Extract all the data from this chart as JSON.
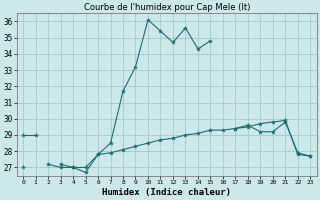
{
  "title": "Courbe de l'humidex pour Cap Mele (It)",
  "xlabel": "Humidex (Indice chaleur)",
  "bg_color": "#cce8ea",
  "grid_color": "#a0c8cc",
  "line_color": "#1a6e6a",
  "x_values": [
    0,
    1,
    2,
    3,
    4,
    5,
    6,
    7,
    8,
    9,
    10,
    11,
    12,
    13,
    14,
    15,
    16,
    17,
    18,
    19,
    20,
    21,
    22,
    23
  ],
  "series1": [
    29.0,
    29.0,
    null,
    27.2,
    27.0,
    26.7,
    27.8,
    28.5,
    31.7,
    33.2,
    36.1,
    35.4,
    34.7,
    35.6,
    34.3,
    34.8,
    null,
    29.4,
    29.6,
    29.2,
    29.2,
    29.8,
    27.9,
    27.7
  ],
  "series2": [
    27.0,
    null,
    27.2,
    27.0,
    27.0,
    27.0,
    27.8,
    27.9,
    28.1,
    28.3,
    28.5,
    28.7,
    28.8,
    29.0,
    29.1,
    29.3,
    29.3,
    29.4,
    29.5,
    29.7,
    29.8,
    29.9,
    27.8,
    27.7
  ],
  "ylim": [
    26.5,
    36.5
  ],
  "xlim": [
    -0.5,
    23.5
  ],
  "yticks": [
    27,
    28,
    29,
    30,
    31,
    32,
    33,
    34,
    35,
    36
  ],
  "xticks": [
    0,
    1,
    2,
    3,
    4,
    5,
    6,
    7,
    8,
    9,
    10,
    11,
    12,
    13,
    14,
    15,
    16,
    17,
    18,
    19,
    20,
    21,
    22,
    23
  ],
  "title_fontsize": 6.0,
  "xlabel_fontsize": 6.5,
  "tick_fontsize": 5.0
}
